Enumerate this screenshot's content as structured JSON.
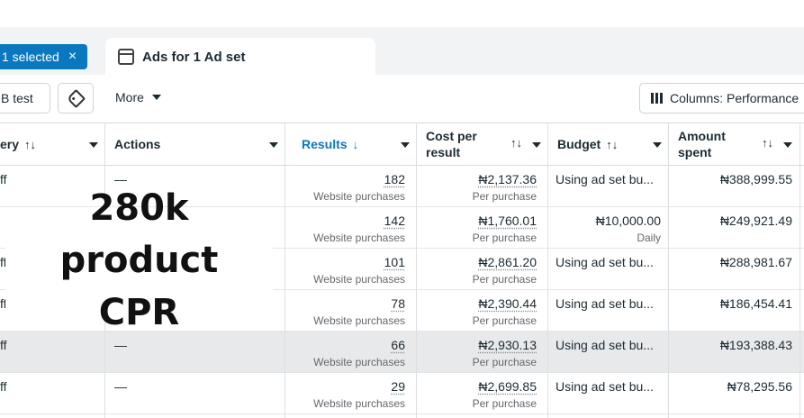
{
  "selection": {
    "label": "1 selected",
    "close_icon": "×"
  },
  "tab": {
    "label": "Ads for 1 Ad set",
    "icon": "window-icon"
  },
  "toolbar": {
    "ab_test": "B test",
    "more": "More",
    "columns": "Columns: Performance"
  },
  "columns": {
    "delivery": "ery",
    "actions": "Actions",
    "results": "Results",
    "cost_per_result_1": "Cost per",
    "cost_per_result_2": "result",
    "budget": "Budget",
    "amount_spent_1": "Amount",
    "amount_spent_2": "spent"
  },
  "sort_icons": {
    "both": "↑↓",
    "down": "↓"
  },
  "rows": [
    {
      "delivery": "ff",
      "actions": "—",
      "results": "182",
      "results_sub": "Website purchases",
      "cpr": "₦2,137.36",
      "cpr_sub": "Per purchase",
      "budget": "Using ad set bu...",
      "budget_sub": "",
      "spent": "₦388,999.55"
    },
    {
      "delivery": "",
      "actions": "",
      "results": "142",
      "results_sub": "Website purchases",
      "cpr": "₦1,760.01",
      "cpr_sub": "Per purchase",
      "budget": "₦10,000.00",
      "budget_sub": "Daily",
      "spent": "₦249,921.49"
    },
    {
      "delivery": "ff",
      "actions": "",
      "results": "101",
      "results_sub": "Website purchases",
      "cpr": "₦2,861.20",
      "cpr_sub": "Per purchase",
      "budget": "Using ad set bu...",
      "budget_sub": "",
      "spent": "₦288,981.67"
    },
    {
      "delivery": "ff",
      "actions": "",
      "results": "78",
      "results_sub": "Website purchases",
      "cpr": "₦2,390.44",
      "cpr_sub": "Per purchase",
      "budget": "Using ad set bu...",
      "budget_sub": "",
      "spent": "₦186,454.41"
    },
    {
      "delivery": "ff",
      "actions": "—",
      "results": "66",
      "results_sub": "Website purchases",
      "cpr": "₦2,930.13",
      "cpr_sub": "Per purchase",
      "budget": "Using ad set bu...",
      "budget_sub": "",
      "spent": "₦193,388.43"
    },
    {
      "delivery": "ff",
      "actions": "—",
      "results": "29",
      "results_sub": "Website purchases",
      "cpr": "₦2,699.85",
      "cpr_sub": "Per purchase",
      "budget": "Using ad set bu...",
      "budget_sub": "",
      "spent": "₦78,295.56"
    }
  ],
  "overlay": {
    "line1": "280k product",
    "line2": "CPR"
  }
}
